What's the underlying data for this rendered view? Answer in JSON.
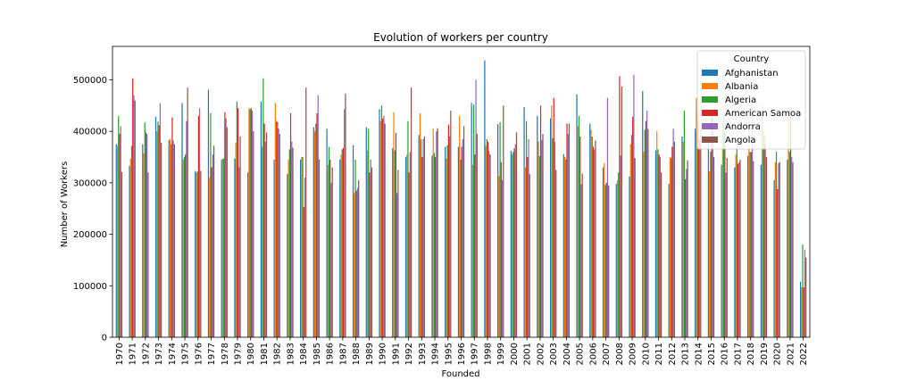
{
  "chart_data": {
    "type": "bar",
    "title": "Evolution of workers per country",
    "xlabel": "Founded",
    "ylabel": "Number of Workers",
    "ylim": [
      0,
      565000
    ],
    "yticks": [
      0,
      100000,
      200000,
      300000,
      400000,
      500000
    ],
    "legend": {
      "title": "Country",
      "placement": "top-right"
    },
    "grid": false,
    "categories": [
      "1970",
      "1971",
      "1972",
      "1973",
      "1974",
      "1975",
      "1976",
      "1977",
      "1978",
      "1979",
      "1980",
      "1981",
      "1982",
      "1983",
      "1984",
      "1985",
      "1986",
      "1987",
      "1988",
      "1989",
      "1990",
      "1991",
      "1992",
      "1993",
      "1994",
      "1995",
      "1996",
      "1997",
      "1998",
      "1999",
      "2000",
      "2001",
      "2002",
      "2003",
      "2004",
      "2005",
      "2006",
      "2007",
      "2008",
      "2009",
      "2010",
      "2011",
      "2012",
      "2013",
      "2014",
      "2015",
      "2016",
      "2017",
      "2018",
      "2019",
      "2020",
      "2021",
      "2022"
    ],
    "series": [
      {
        "name": "Afghanistan",
        "color": "#1f77b4",
        "values": [
          375000,
          333000,
          375000,
          428000,
          383000,
          455000,
          323000,
          481000,
          345000,
          347000,
          320000,
          458000,
          345000,
          317000,
          345000,
          408000,
          405000,
          345000,
          373000,
          408000,
          443000,
          367000,
          350000,
          393000,
          353000,
          370000,
          370000,
          455000,
          538000,
          414000,
          362000,
          447000,
          430000,
          425000,
          356000,
          472000,
          415000,
          330000,
          298000,
          312000,
          478000,
          363000,
          298000,
          390000,
          405000,
          380000,
          335000,
          330000,
          352000,
          335000,
          305000,
          345000,
          108000
        ]
      },
      {
        "name": "Albania",
        "color": "#ff7f0e",
        "values": [
          372000,
          347000,
          357000,
          400000,
          385000,
          345000,
          320000,
          310000,
          347000,
          378000,
          445000,
          370000,
          455000,
          345000,
          350000,
          400000,
          335000,
          355000,
          280000,
          363000,
          420000,
          437000,
          355000,
          435000,
          405000,
          347000,
          430000,
          335000,
          372000,
          313000,
          355000,
          330000,
          380000,
          450000,
          350000,
          410000,
          403000,
          338000,
          305000,
          375000,
          360000,
          400000,
          350000,
          380000,
          465000,
          322000,
          405000,
          355000,
          425000,
          450000,
          340000,
          430000,
          97000
        ]
      },
      {
        "name": "Algeria",
        "color": "#2ca02c",
        "values": [
          430000,
          372000,
          417000,
          419000,
          375000,
          350000,
          322000,
          435000,
          347000,
          458000,
          443000,
          503000,
          420000,
          365000,
          350000,
          415000,
          370000,
          365000,
          345000,
          405000,
          450000,
          363000,
          420000,
          385000,
          358000,
          373000,
          345000,
          452000,
          385000,
          418000,
          360000,
          420000,
          352000,
          387000,
          345000,
          430000,
          390000,
          296000,
          320000,
          393000,
          403000,
          365000,
          348000,
          440000,
          440000,
          360000,
          430000,
          368000,
          360000,
          400000,
          360000,
          360000,
          180000
        ]
      },
      {
        "name": "American Samoa",
        "color": "#d62728",
        "values": [
          395000,
          503000,
          398000,
          412000,
          427000,
          355000,
          430000,
          330000,
          437000,
          445000,
          445000,
          415000,
          418000,
          435000,
          253000,
          435000,
          345000,
          368000,
          285000,
          320000,
          425000,
          397000,
          320000,
          350000,
          350000,
          413000,
          370000,
          355000,
          380000,
          340000,
          367000,
          350000,
          450000,
          465000,
          415000,
          390000,
          370000,
          300000,
          507000,
          428000,
          420000,
          355000,
          370000,
          307000,
          420000,
          430000,
          397000,
          337000,
          360000,
          390000,
          288000,
          445000,
          97000
        ]
      },
      {
        "name": "Andorra",
        "color": "#9467bd",
        "values": [
          410000,
          470000,
          395000,
          455000,
          382000,
          420000,
          445000,
          355000,
          425000,
          330000,
          440000,
          380000,
          405000,
          380000,
          310000,
          470000,
          300000,
          443000,
          290000,
          345000,
          430000,
          280000,
          360000,
          385000,
          400000,
          390000,
          385000,
          500000,
          362000,
          305000,
          375000,
          385000,
          383000,
          380000,
          395000,
          297000,
          365000,
          465000,
          353000,
          510000,
          440000,
          350000,
          405000,
          327000,
          387000,
          440000,
          320000,
          340000,
          455000,
          375000,
          338000,
          350000,
          170000
        ]
      },
      {
        "name": "Angola",
        "color": "#8c564b",
        "values": [
          321000,
          460000,
          320000,
          378000,
          375000,
          485000,
          323000,
          372000,
          408000,
          390000,
          400000,
          398000,
          395000,
          368000,
          485000,
          345000,
          330000,
          473000,
          305000,
          330000,
          415000,
          325000,
          485000,
          390000,
          406000,
          440000,
          410000,
          395000,
          355000,
          450000,
          398000,
          317000,
          395000,
          325000,
          415000,
          318000,
          382000,
          295000,
          487000,
          348000,
          405000,
          320000,
          380000,
          344000,
          405000,
          350000,
          348000,
          345000,
          342000,
          350000,
          340000,
          340000,
          155000
        ]
      }
    ]
  }
}
